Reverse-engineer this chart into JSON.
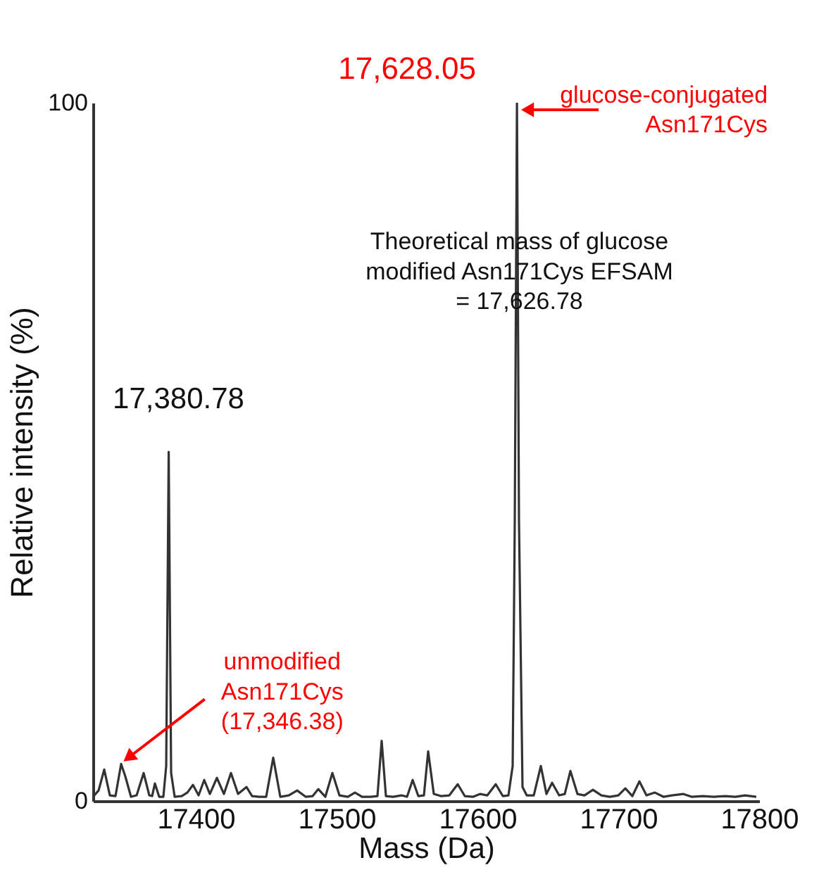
{
  "chart_data": {
    "type": "line",
    "xlabel": "Mass (Da)",
    "ylabel": "Relative intensity (%)",
    "xlim": [
      17327,
      17800
    ],
    "xticks": [
      17400,
      17500,
      17600,
      17700,
      17800
    ],
    "ylim": [
      0,
      100
    ],
    "yticks": [
      0,
      100
    ],
    "grid": false,
    "marker": "none",
    "line_style": "solid",
    "series": [
      {
        "color": "#333333",
        "x": [
          17328,
          17331,
          17335,
          17339,
          17343,
          17347,
          17350,
          17354,
          17358,
          17363,
          17367,
          17369,
          17371,
          17374,
          17377,
          17379,
          17380.78,
          17382.5,
          17385,
          17390,
          17394,
          17398,
          17402,
          17406,
          17410,
          17415,
          17420,
          17425,
          17430,
          17436,
          17440,
          17445,
          17450,
          17455,
          17460,
          17466,
          17472,
          17478,
          17483,
          17487,
          17492,
          17497,
          17502,
          17508,
          17513,
          17518,
          17524,
          17529,
          17532,
          17535,
          17540,
          17546,
          17550,
          17554,
          17558,
          17562,
          17565,
          17569,
          17574,
          17580,
          17586,
          17591,
          17597,
          17602,
          17607,
          17613,
          17618,
          17622,
          17625,
          17626.5,
          17628.05,
          17629.5,
          17632,
          17635,
          17640,
          17645,
          17649,
          17653,
          17658,
          17662,
          17666,
          17671,
          17676,
          17682,
          17688,
          17694,
          17700,
          17705,
          17710,
          17715,
          17720,
          17726,
          17732,
          17738,
          17746,
          17752,
          17760,
          17768,
          17776,
          17783,
          17790,
          17798
        ],
        "values": [
          0.8,
          1.5,
          4.5,
          0.8,
          0.7,
          5.3,
          3.5,
          0.6,
          0.8,
          4,
          0.8,
          0.7,
          2.5,
          0.6,
          0.6,
          5,
          50,
          4,
          0.6,
          0.7,
          1.2,
          2.3,
          0.8,
          3,
          1,
          3.3,
          1,
          4,
          1,
          2,
          0.7,
          0.6,
          0.6,
          6.2,
          0.6,
          0.8,
          1.5,
          0.6,
          0.7,
          1.7,
          0.6,
          4,
          0.8,
          0.6,
          1.2,
          0.6,
          0.6,
          0.7,
          8.6,
          0.7,
          0.6,
          0.8,
          0.6,
          3,
          0.7,
          0.8,
          7.1,
          1,
          0.7,
          0.8,
          2.4,
          0.7,
          0.6,
          1,
          0.8,
          2.4,
          0.7,
          0.8,
          5,
          40,
          100,
          40,
          2,
          0.8,
          0.8,
          5,
          1,
          2.6,
          0.8,
          1,
          4.3,
          1,
          0.8,
          1.6,
          0.8,
          0.6,
          0.8,
          1.8,
          0.7,
          2.8,
          0.8,
          1.2,
          0.6,
          0.8,
          1,
          0.6,
          0.7,
          0.6,
          0.7,
          0.6,
          0.8,
          0.6
        ]
      }
    ],
    "annotations": [
      {
        "text": "17,628.05",
        "x": 17628.05,
        "y": 100
      },
      {
        "text": "glucose-conjugated\nAsn171Cys",
        "x": 17628.05,
        "y": 99
      },
      "Theoretical mass of glucose\nmodified Asn171Cys EFSAM\n= 17,626.78",
      {
        "text": "17,380.78",
        "x": 17380.78,
        "y": 50
      },
      {
        "text": "unmodified\nAsn171Cys\n(17,346.38)",
        "x": 17346.38,
        "y": 5.3
      }
    ]
  }
}
